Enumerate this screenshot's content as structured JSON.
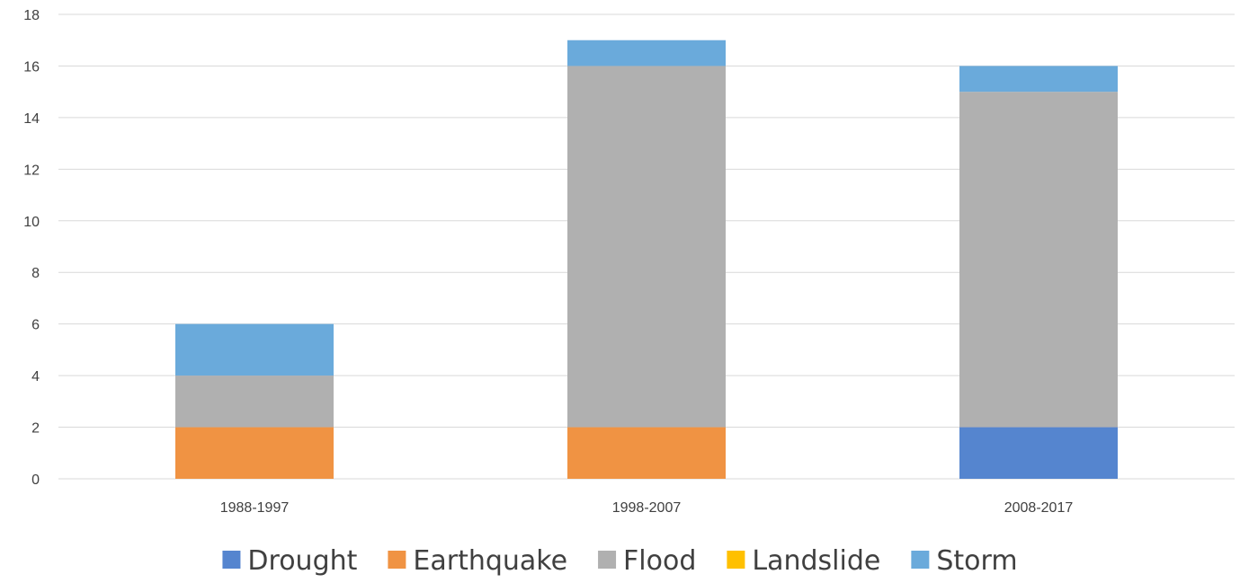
{
  "chart_data": {
    "type": "bar",
    "stacked": true,
    "title": "",
    "xlabel": "",
    "ylabel": "",
    "categories": [
      "1988-1997",
      "1998-2007",
      "2008-2017"
    ],
    "series": [
      {
        "name": "Drought",
        "color": "#5585cf",
        "values": [
          0,
          0,
          2
        ]
      },
      {
        "name": "Earthquake",
        "color": "#f09343",
        "values": [
          2,
          2,
          0
        ]
      },
      {
        "name": "Flood",
        "color": "#b0b0b0",
        "values": [
          2,
          14,
          13
        ]
      },
      {
        "name": "Landslide",
        "color": "#ffc000",
        "values": [
          0,
          0,
          0
        ]
      },
      {
        "name": "Storm",
        "color": "#6aaadb",
        "values": [
          2,
          1,
          1
        ]
      }
    ],
    "ylim": [
      0,
      18
    ],
    "yticks": [
      0,
      2,
      4,
      6,
      8,
      10,
      12,
      14,
      16,
      18
    ],
    "grid": true,
    "legend_position": "bottom"
  }
}
